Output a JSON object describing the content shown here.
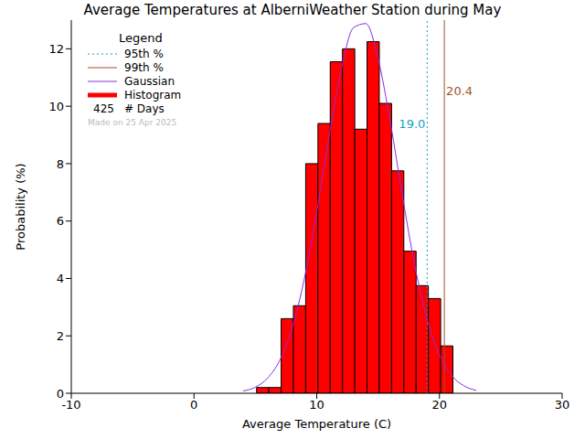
{
  "chart_data": {
    "type": "histogram",
    "title": "Average Temperatures at AlberniWeather Station during May",
    "x_label": "Average Temperature (C)",
    "y_label": "Probability (%)",
    "name": "Histogram",
    "color": "#ff0000",
    "bins": [
      5.1,
      6.1,
      7.1,
      8.1,
      9.1,
      10.1,
      11.1,
      12.1,
      13.1,
      14.1,
      15.1,
      16.1,
      17.1,
      18.1,
      19.1,
      20.1,
      21.1
    ],
    "values": [
      0.2,
      0.2,
      2.6,
      3.05,
      8.0,
      9.4,
      11.55,
      12.0,
      9.2,
      12.25,
      10.1,
      7.75,
      4.95,
      3.75,
      3.3,
      1.65
    ],
    "series": [
      {
        "name": "Gaussian",
        "type": "line",
        "color": "#8a2be2",
        "x": [
          4,
          5,
          6,
          7,
          8,
          9,
          10,
          11,
          12,
          13,
          14,
          15,
          16,
          17,
          18,
          19,
          20,
          21,
          22,
          23
        ],
        "values": [
          0.08,
          0.21,
          0.53,
          1.16,
          2.28,
          4.01,
          6.33,
          8.93,
          11.27,
          12.74,
          12.88,
          11.66,
          9.44,
          6.84,
          4.43,
          2.57,
          1.34,
          0.62,
          0.26,
          0.1
        ]
      }
    ],
    "lines": [
      {
        "name": "95th %",
        "value": 19.0,
        "label": "19.0",
        "color": "#1a9fbf",
        "line_style": "dotted"
      },
      {
        "name": "99th %",
        "value": 20.4,
        "label": "20.4",
        "color": "#a0522d",
        "line_style": "solid"
      }
    ],
    "legend": "upper left",
    "legend_title": "Legend",
    "days": 425,
    "days_label": "# Days",
    "note": "Made on 25 Apr 2025",
    "xlim": [
      -10,
      30
    ],
    "ylim": [
      0,
      13
    ],
    "xticks": [
      -10,
      0,
      10,
      20,
      30
    ],
    "yticks": [
      0,
      2,
      4,
      6,
      8,
      10,
      12
    ]
  }
}
